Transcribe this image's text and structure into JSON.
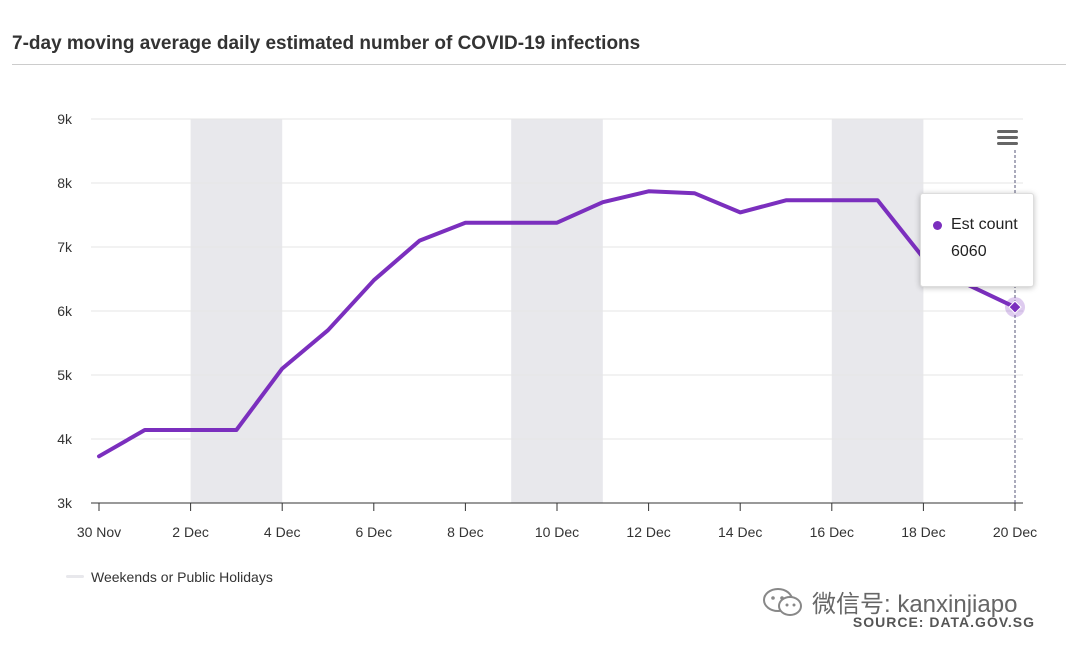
{
  "title": "7-day moving average daily estimated number of COVID-19 infections",
  "colors": {
    "series": "#7B2FBE",
    "shade": "#E8E8EC",
    "grid": "#E6E6E6",
    "axis": "#333333"
  },
  "chart_data": {
    "type": "line",
    "title": "7-day moving average daily estimated number of COVID-19 infections",
    "x": [
      "30 Nov",
      "1 Dec",
      "2 Dec",
      "3 Dec",
      "4 Dec",
      "5 Dec",
      "6 Dec",
      "7 Dec",
      "8 Dec",
      "9 Dec",
      "10 Dec",
      "11 Dec",
      "12 Dec",
      "13 Dec",
      "14 Dec",
      "15 Dec",
      "16 Dec",
      "17 Dec",
      "18 Dec",
      "19 Dec",
      "20 Dec"
    ],
    "x_tick_labels": [
      "30 Nov",
      "2 Dec",
      "4 Dec",
      "6 Dec",
      "8 Dec",
      "10 Dec",
      "12 Dec",
      "14 Dec",
      "16 Dec",
      "18 Dec",
      "20 Dec"
    ],
    "series": [
      {
        "name": "Est count",
        "values": [
          3730,
          4140,
          4140,
          4140,
          5100,
          5700,
          6480,
          7100,
          7380,
          7380,
          7380,
          7700,
          7870,
          7840,
          7540,
          7730,
          7730,
          7730,
          6830,
          6400,
          6060
        ]
      }
    ],
    "y_tick_labels": [
      "3k",
      "4k",
      "5k",
      "6k",
      "7k",
      "8k",
      "9k"
    ],
    "ylim": [
      3000,
      9000
    ],
    "y_ticks": [
      3000,
      4000,
      5000,
      6000,
      7000,
      8000,
      9000
    ],
    "grid": true,
    "shaded_ranges": [
      [
        "2 Dec",
        "4 Dec"
      ],
      [
        "9 Dec",
        "11 Dec"
      ],
      [
        "16 Dec",
        "18 Dec"
      ]
    ],
    "shaded_legend": "Weekends or Public Holidays",
    "legend_position": "bottom-left",
    "tooltip": {
      "series": "Est count",
      "x": "20 Dec",
      "value": "6060"
    }
  },
  "watermark": {
    "text": "微信号: kanxinjiapo"
  },
  "source": "SOURCE: DATA.GOV.SG"
}
